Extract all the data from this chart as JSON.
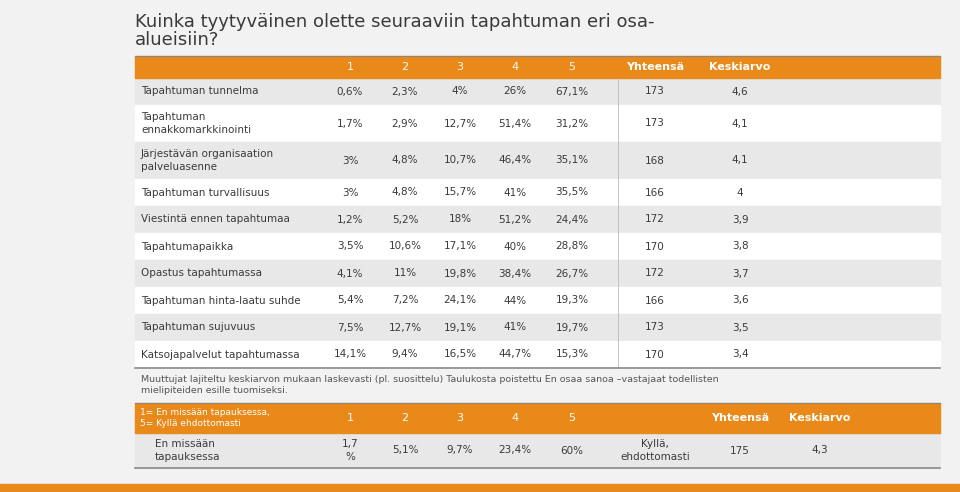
{
  "title_line1": "Kuinka tyytyväinen olette seuraaviin tapahtuman eri osa-",
  "title_line2": "alueisiin?",
  "bg_color": "#f2f2f2",
  "orange": "#E8891A",
  "light_gray": "#e8e8e8",
  "white": "#ffffff",
  "dark_text": "#3a3a3a",
  "white_text": "#ffffff",
  "gray_text": "#555555",
  "header_cols": [
    "1",
    "2",
    "3",
    "4",
    "5",
    "Yhteensä",
    "Keskiarvo"
  ],
  "rows": [
    {
      "label": "Tapahtuman tunnelma",
      "v": [
        "0,6%",
        "2,3%",
        "4%",
        "26%",
        "67,1%",
        "173",
        "4,6"
      ]
    },
    {
      "label": "Tapahtuman\nennakkomarkkinointi",
      "v": [
        "1,7%",
        "2,9%",
        "12,7%",
        "51,4%",
        "31,2%",
        "173",
        "4,1"
      ]
    },
    {
      "label": "Järjestävän organisaation\npalveluasenne",
      "v": [
        "3%",
        "4,8%",
        "10,7%",
        "46,4%",
        "35,1%",
        "168",
        "4,1"
      ]
    },
    {
      "label": "Tapahtuman turvallisuus",
      "v": [
        "3%",
        "4,8%",
        "15,7%",
        "41%",
        "35,5%",
        "166",
        "4"
      ]
    },
    {
      "label": "Viestintä ennen tapahtumaa",
      "v": [
        "1,2%",
        "5,2%",
        "18%",
        "51,2%",
        "24,4%",
        "172",
        "3,9"
      ]
    },
    {
      "label": "Tapahtumapaikka",
      "v": [
        "3,5%",
        "10,6%",
        "17,1%",
        "40%",
        "28,8%",
        "170",
        "3,8"
      ]
    },
    {
      "label": "Opastus tapahtumassa",
      "v": [
        "4,1%",
        "11%",
        "19,8%",
        "38,4%",
        "26,7%",
        "172",
        "3,7"
      ]
    },
    {
      "label": "Tapahtuman hinta-laatu suhde",
      "v": [
        "5,4%",
        "7,2%",
        "24,1%",
        "44%",
        "19,3%",
        "166",
        "3,6"
      ]
    },
    {
      "label": "Tapahtuman sujuvuus",
      "v": [
        "7,5%",
        "12,7%",
        "19,1%",
        "41%",
        "19,7%",
        "173",
        "3,5"
      ]
    },
    {
      "label": "Katsojapalvelut tapahtumassa",
      "v": [
        "14,1%",
        "9,4%",
        "16,5%",
        "44,7%",
        "15,3%",
        "170",
        "3,4"
      ]
    }
  ],
  "footnote_line1": "Muuttujat lajiteltu keskiarvon mukaan laskevasti (pl. suosittelu) Taulukosta poistettu En osaa sanoa –vastajaat todellisten",
  "footnote_line2": "mielipiteiden esille tuomiseksi.",
  "bt_label": "1= En missään tapauksessa,\n5= Kyllä ehdottomasti",
  "bt_h_cols": [
    "1",
    "2",
    "3",
    "4",
    "5",
    "Yhteensä",
    "Keskiarvo"
  ],
  "bt_row_label": "En missään\ntapauksessa",
  "bt_row_vals": [
    "1,7\n%",
    "5,1%",
    "9,7%",
    "23,4%",
    "60%",
    "Kyllä,\nehdottomasti",
    "175",
    "4,3"
  ]
}
